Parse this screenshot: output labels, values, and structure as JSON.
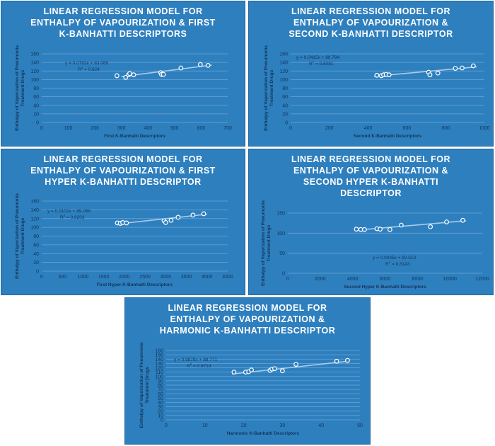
{
  "chart_data": [
    {
      "type": "scatter",
      "title_lines": [
        "LINEAR REGRESSION MODEL FOR",
        "ENTHALPY OF VAPOURIZATION & FIRST",
        "K-BANHATTI DESCRIPTORS"
      ],
      "xlabel": "First K-Banhatti Descriptors",
      "ylabel_lines": [
        "Enthalpy of Vaporization of Pneumonia",
        "Treatment Drugs"
      ],
      "xlim": [
        0,
        700
      ],
      "ylim": [
        0,
        160
      ],
      "xticks": [
        "0",
        "100",
        "200",
        "300",
        "400",
        "500",
        "600",
        "700"
      ],
      "yticks": [
        "0",
        "20",
        "40",
        "60",
        "80",
        "100",
        "120",
        "140",
        "160"
      ],
      "grid": true,
      "equation": "y = 0.0793x + 83.069",
      "r2_prefix": "R",
      "r2_value": " = 0.824",
      "trend": {
        "x": [
          300,
          640
        ],
        "y": [
          106.9,
          133.8
        ]
      },
      "x": [
        283,
        316,
        327,
        331,
        346,
        448,
        451,
        458,
        524,
        597,
        626
      ],
      "y": [
        109,
        105,
        111,
        114,
        111,
        116,
        112,
        112,
        127,
        135,
        133
      ]
    },
    {
      "type": "scatter",
      "title_lines": [
        "LINEAR REGRESSION MODEL FOR",
        "ENTHALPY OF VAPOURIZATION &",
        "SECOND K-BANHATTI DESCRIPTOR"
      ],
      "xlabel": "Second K-Banhatti Descriptors",
      "ylabel_lines": [
        "Enthalpy of Vaporization of Pneumonia",
        "Treatment Drugs"
      ],
      "xlim": [
        0,
        1000
      ],
      "ylim": [
        0,
        160
      ],
      "xticks": [
        "0",
        "200",
        "400",
        "600",
        "800",
        "1000"
      ],
      "yticks": [
        "0",
        "20",
        "40",
        "60",
        "80",
        "100",
        "120",
        "140",
        "160"
      ],
      "grid": true,
      "equation": "y = 0.0415x + 89.794",
      "r2_prefix": "R",
      "r2_value": " = 0.8081",
      "trend": {
        "x": [
          430,
          960
        ],
        "y": [
          107.6,
          129.6
        ]
      },
      "x": [
        445,
        468,
        480,
        493,
        508,
        712,
        719,
        760,
        850,
        885,
        943
      ],
      "y": [
        110,
        109,
        111,
        112,
        111,
        117,
        111,
        115,
        126,
        127,
        132
      ]
    },
    {
      "type": "scatter",
      "title_lines": [
        "LINEAR REGRESSION MODEL FOR",
        "ENTHALPY OF VAPOURIZATION & FIRST",
        "HYPER K-BANHATTI DESCRIPTOR"
      ],
      "xlabel": "First Hyper K-Banhatti Descriptors",
      "ylabel_lines": [
        "Enthalpy of Vaporization of Pneumonia",
        "Treatment Drugs"
      ],
      "xlim": [
        0,
        4500
      ],
      "ylim": [
        0,
        160
      ],
      "xticks": [
        "0",
        "500",
        "1000",
        "1500",
        "2000",
        "2500",
        "3000",
        "3500",
        "4000",
        "4500"
      ],
      "yticks": [
        "0",
        "20",
        "40",
        "60",
        "80",
        "100",
        "120",
        "140",
        "160"
      ],
      "grid": true,
      "equation": "y = 0.0102x + 89.066",
      "r2_prefix": "R",
      "r2_value": " = 0.8203",
      "trend": {
        "x": [
          1800,
          4000
        ],
        "y": [
          107.4,
          129.9
        ]
      },
      "x": [
        1830,
        1900,
        1960,
        2050,
        2960,
        3000,
        3130,
        3300,
        3660,
        3920
      ],
      "y": [
        110,
        109,
        111,
        110,
        115,
        111,
        116,
        123,
        128,
        131
      ]
    },
    {
      "type": "scatter",
      "title_lines": [
        "LINEAR REGRESSION MODEL FOR",
        "ENTHALPY OF VAPOURIZATION &",
        "SECOND HYPER K-BANHATTI",
        "DESCRIPTOR"
      ],
      "xlabel": "Second Hyper K-Banhatti Descriptors",
      "ylabel_lines": [
        "Enthalpy of Vaporization of Pneumonia",
        "Treatment Drugs"
      ],
      "xlim": [
        0,
        12000
      ],
      "ylim": [
        0,
        150
      ],
      "xticks": [
        "0",
        "2000",
        "4000",
        "6000",
        "8000",
        "10000",
        "12000"
      ],
      "yticks": [
        "0",
        "50",
        "100",
        "150"
      ],
      "grid": true,
      "equation": "y = 0.0035x + 92.513",
      "r2_prefix": "R",
      "r2_value": " = 0.8143",
      "trend": {
        "x": [
          4200,
          11000
        ],
        "y": [
          107.2,
          131.0
        ]
      },
      "x": [
        4230,
        4500,
        4730,
        5500,
        5700,
        6300,
        7000,
        8800,
        9800,
        10800
      ],
      "y": [
        110,
        109,
        109,
        111,
        110,
        109,
        120,
        116,
        128,
        132
      ]
    },
    {
      "type": "scatter",
      "title_lines": [
        "LINEAR REGRESSION MODEL FOR",
        "ENTHALPY OF VAPOURIZATION &",
        "HARMONIC K-BANHATTI DESCRIPTOR"
      ],
      "xlabel": "Harmonic K-Banhatti Descriptors",
      "ylabel_lines": [
        "Enthalpy of Vaporization of Pneumonia",
        "Treatment Drugs"
      ],
      "xlim": [
        0,
        50
      ],
      "ylim": [
        0,
        160
      ],
      "xticks": [
        "0",
        "10",
        "20",
        "30",
        "40",
        "50"
      ],
      "yticks": [
        "0",
        "10",
        "20",
        "30",
        "40",
        "50",
        "60",
        "70",
        "80",
        "90",
        "100",
        "110",
        "120",
        "130",
        "140",
        "150",
        "160"
      ],
      "grid": true,
      "equation": "y = 0.9878x + 88.771",
      "r2_prefix": "R",
      "r2_value": " = 0.8719",
      "trend": {
        "x": [
          17,
          47
        ],
        "y": [
          105.6,
          135.2
        ]
      },
      "x": [
        17.5,
        20.5,
        21.3,
        22,
        26.8,
        27.3,
        28,
        30,
        33.5,
        44,
        46.8
      ],
      "y": [
        110,
        110,
        111,
        115,
        114,
        117,
        118,
        113,
        128,
        135,
        137
      ]
    }
  ]
}
